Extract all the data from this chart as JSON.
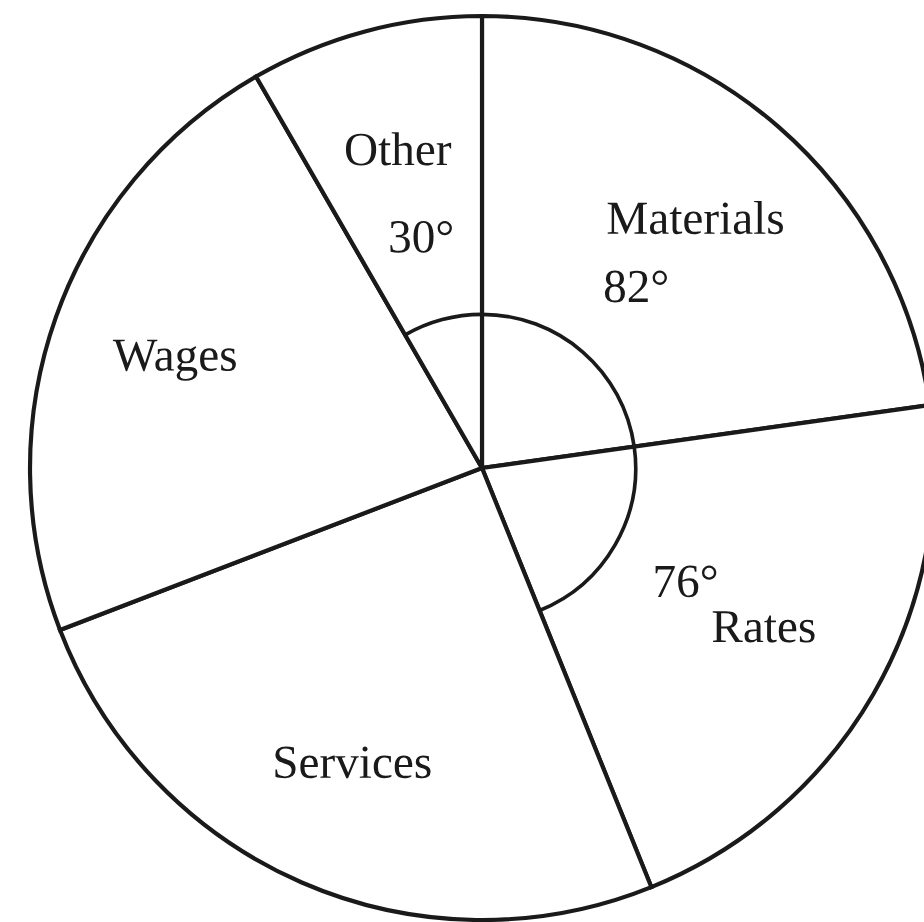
{
  "chart_data": {
    "type": "pie",
    "categories": [
      "Materials",
      "Rates",
      "Services",
      "Wages",
      "Other"
    ],
    "values": [
      82,
      76,
      91,
      81,
      30
    ],
    "colors": [
      "#ffffff",
      "#ffffff",
      "#ffffff",
      "#ffffff",
      "#ffffff"
    ],
    "value_labels": [
      "82°",
      "76°",
      null,
      null,
      "30°"
    ],
    "legend": false
  }
}
